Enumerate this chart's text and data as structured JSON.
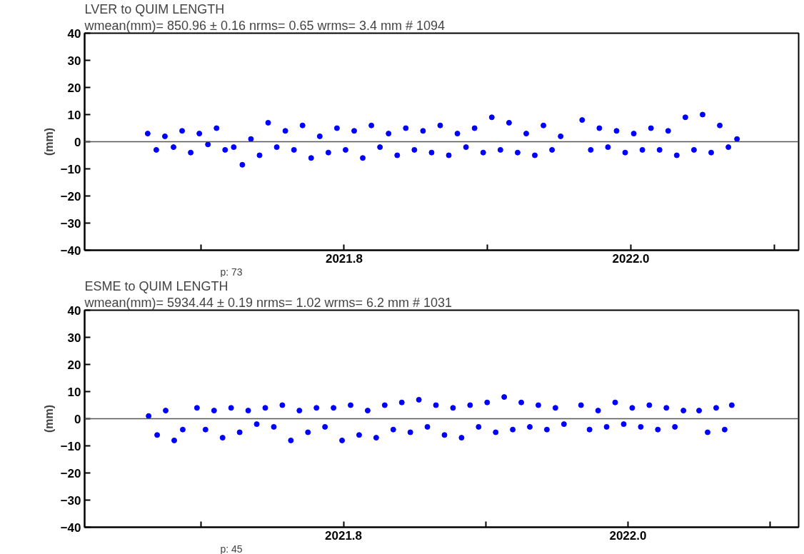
{
  "chart_data": [
    {
      "type": "scatter",
      "title": "LVER to QUIM   LENGTH",
      "subtitle": "wmean(mm)=  850.96 ±  0.16  nrms=  0.65  wrms=   3.4 mm # 1094",
      "ylabel": "(mm)",
      "annotations": [
        "p: 73"
      ],
      "marker": "circle",
      "grid": false,
      "xlim": [
        2021.619,
        2022.117
      ],
      "ylim": [
        -40,
        40
      ],
      "xticks": [
        {
          "value": 2021.7,
          "label": null
        },
        {
          "value": 2021.8,
          "label": "2021.8"
        },
        {
          "value": 2021.9,
          "label": null
        },
        {
          "value": 2022.0,
          "label": "2022.0"
        },
        {
          "value": 2022.1,
          "label": null
        }
      ],
      "yticks": [
        -40,
        -30,
        -20,
        -10,
        0,
        10,
        20,
        30,
        40
      ],
      "ref_lines": [
        {
          "axis": "y",
          "value": 0,
          "color": "#555555"
        }
      ],
      "series": [
        {
          "color": "#0000ff",
          "x": [
            2021.663,
            2021.669,
            2021.675,
            2021.681,
            2021.687,
            2021.693,
            2021.699,
            2021.705,
            2021.711,
            2021.717,
            2021.723,
            2021.729,
            2021.735,
            2021.741,
            2021.747,
            2021.753,
            2021.759,
            2021.765,
            2021.771,
            2021.777,
            2021.783,
            2021.789,
            2021.795,
            2021.801,
            2021.807,
            2021.813,
            2021.819,
            2021.825,
            2021.831,
            2021.837,
            2021.843,
            2021.849,
            2021.855,
            2021.861,
            2021.867,
            2021.873,
            2021.879,
            2021.885,
            2021.891,
            2021.897,
            2021.903,
            2021.909,
            2021.915,
            2021.921,
            2021.927,
            2021.933,
            2021.939,
            2021.945,
            2021.951,
            2021.966,
            2021.972,
            2021.978,
            2021.984,
            2021.99,
            2021.996,
            2022.002,
            2022.008,
            2022.014,
            2022.02,
            2022.026,
            2022.032,
            2022.038,
            2022.044,
            2022.05,
            2022.056,
            2022.062,
            2022.068,
            2022.074
          ],
          "values": [
            3,
            -3,
            2,
            -2,
            4,
            -4,
            3,
            -1,
            5,
            -3,
            -2,
            -8.5,
            1,
            -5,
            7,
            -2,
            4,
            -3,
            6,
            -6,
            2,
            -4,
            5,
            -3,
            4,
            -6,
            6,
            -2,
            3,
            -5,
            5,
            -3,
            4,
            -4,
            6,
            -5,
            3,
            -2,
            5,
            -4,
            9,
            -3,
            7,
            -4,
            3,
            -5,
            6,
            -3,
            2,
            8,
            -3,
            5,
            -2,
            4,
            -4,
            3,
            -3,
            5,
            -3,
            4,
            -5,
            9,
            -3,
            10,
            -4,
            6,
            -2,
            1
          ]
        }
      ]
    },
    {
      "type": "scatter",
      "title": "ESME to QUIM   LENGTH",
      "subtitle": "wmean(mm)= 5934.44 ±  0.19  nrms=  1.02  wrms=   6.2 mm # 1031",
      "ylabel": "(mm)",
      "annotations": [
        "p: 45"
      ],
      "marker": "circle",
      "grid": false,
      "xlim": [
        2021.618,
        2022.12
      ],
      "ylim": [
        -40,
        40
      ],
      "xticks": [
        {
          "value": 2021.7,
          "label": null
        },
        {
          "value": 2021.8,
          "label": "2021.8"
        },
        {
          "value": 2021.9,
          "label": null
        },
        {
          "value": 2022.0,
          "label": "2022.0"
        },
        {
          "value": 2022.1,
          "label": null
        }
      ],
      "yticks": [
        -40,
        -30,
        -20,
        -10,
        0,
        10,
        20,
        30,
        40
      ],
      "ref_lines": [
        {
          "axis": "y",
          "value": 0,
          "color": "#555555"
        }
      ],
      "series": [
        {
          "color": "#0000ff",
          "x": [
            2021.663,
            2021.669,
            2021.675,
            2021.681,
            2021.687,
            2021.697,
            2021.703,
            2021.709,
            2021.715,
            2021.721,
            2021.727,
            2021.733,
            2021.739,
            2021.745,
            2021.751,
            2021.757,
            2021.763,
            2021.769,
            2021.775,
            2021.781,
            2021.787,
            2021.793,
            2021.799,
            2021.805,
            2021.811,
            2021.817,
            2021.823,
            2021.829,
            2021.835,
            2021.841,
            2021.847,
            2021.853,
            2021.859,
            2021.865,
            2021.871,
            2021.877,
            2021.883,
            2021.889,
            2021.895,
            2021.901,
            2021.907,
            2021.913,
            2021.919,
            2021.925,
            2021.931,
            2021.937,
            2021.943,
            2021.949,
            2021.955,
            2021.967,
            2021.973,
            2021.979,
            2021.985,
            2021.991,
            2021.997,
            2022.003,
            2022.009,
            2022.015,
            2022.021,
            2022.027,
            2022.033,
            2022.039,
            2022.05,
            2022.056,
            2022.062,
            2022.068,
            2022.073
          ],
          "values": [
            1,
            -6,
            3,
            -8,
            -4,
            4,
            -4,
            3,
            -7,
            4,
            -5,
            3,
            -2,
            4,
            -3,
            5,
            -8,
            3,
            -5,
            4,
            -3,
            4,
            -8,
            5,
            -6,
            3,
            -7,
            5,
            -4,
            6,
            -5,
            7,
            -3,
            5,
            -6,
            4,
            -7,
            5,
            -3,
            6,
            -5,
            8,
            -4,
            6,
            -3,
            5,
            -4,
            4,
            -2,
            5,
            -4,
            3,
            -3,
            6,
            -2,
            4,
            -3,
            5,
            -4,
            4,
            -3,
            3,
            3,
            -5,
            4,
            -4,
            5
          ]
        }
      ]
    }
  ]
}
